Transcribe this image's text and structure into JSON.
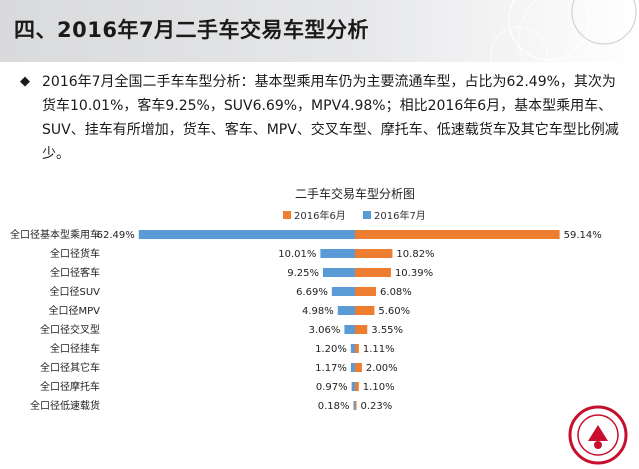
{
  "header": {
    "title": "四、2016年7月二手车交易车型分析"
  },
  "summary": {
    "bullet": "◆",
    "text": "2016年7月全国二手车车型分析：基本型乘用车仍为主要流通车型，占比为62.49%，其次为货车10.01%，客车9.25%，SUV6.69%，MPV4.98%；相比2016年6月，基本型乘用车、SUV、挂车有所增加，货车、客车、MPV、交叉车型、摩托车、低速载货车及其它车型比例减少。"
  },
  "chart_data": {
    "type": "bar",
    "title": "二手车交易车型分析图",
    "legend_position": "top",
    "categories": [
      "全口径基本型乘用车",
      "全口径货车",
      "全口径客车",
      "全口径SUV",
      "全口径MPV",
      "全口径交叉型",
      "全口径挂车",
      "全口径其它车",
      "全口径摩托车",
      "全口径低速载货"
    ],
    "series": [
      {
        "name": "2016年6月",
        "color": "#ed7d31",
        "values": [
          59.14,
          10.82,
          10.39,
          6.08,
          5.6,
          3.55,
          1.11,
          2.0,
          1.1,
          0.23
        ],
        "labels": [
          "59.14%",
          "10.82%",
          "10.39%",
          "6.08%",
          "5.60%",
          "3.55%",
          "1.11%",
          "2.00%",
          "1.10%",
          "0.23%"
        ]
      },
      {
        "name": "2016年7月",
        "color": "#5b9bd5",
        "values": [
          62.49,
          10.01,
          9.25,
          6.69,
          4.98,
          3.06,
          1.2,
          1.17,
          0.97,
          0.18
        ],
        "labels": [
          "62.49%",
          "10.01%",
          "9.25%",
          "6.69%",
          "4.98%",
          "3.06%",
          "1.20%",
          "1.17%",
          "0.97%",
          "0.18%"
        ]
      }
    ],
    "colors": {
      "june": "#ed7d31",
      "july": "#5b9bd5"
    }
  },
  "logo": {
    "icon": "seal-logo"
  }
}
